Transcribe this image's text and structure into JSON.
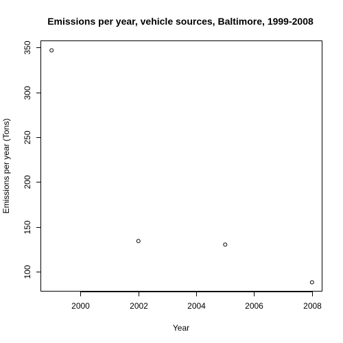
{
  "chart_data": {
    "type": "scatter",
    "title": "Emissions per year, vehicle sources, Baltimore, 1999-2008",
    "xlabel": "Year",
    "ylabel": "Emissions per year (Tons)",
    "x": [
      1999,
      2002,
      2005,
      2008
    ],
    "y": [
      346.8,
      134.3,
      130.4,
      88.3
    ],
    "xlim": [
      1998.64,
      2008.36
    ],
    "ylim": [
      78.0,
      357.0
    ],
    "x_ticks": [
      2000,
      2002,
      2004,
      2006,
      2008
    ],
    "x_tick_labels": [
      "2000",
      "2002",
      "2004",
      "2006",
      "2008"
    ],
    "y_ticks": [
      100,
      150,
      200,
      250,
      300,
      350
    ],
    "y_tick_labels": [
      "100",
      "150",
      "200",
      "250",
      "300",
      "350"
    ],
    "grid": false,
    "legend": "none",
    "marker": "open-circle",
    "colors": {
      "points": "#000000",
      "axes": "#000000",
      "background": "#ffffff"
    }
  }
}
